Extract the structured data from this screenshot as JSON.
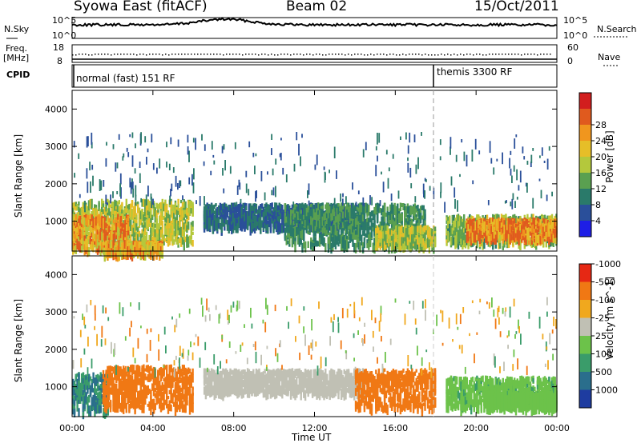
{
  "header": {
    "station": "Syowa East (fitACF)",
    "beam": "Beam 02",
    "date": "15/Oct/2011"
  },
  "panels": {
    "nsky": {
      "label": "N.Sky",
      "tick_top": "10^5",
      "tick_bottom": "10^0"
    },
    "nsearch": {
      "label": "N.Search",
      "tick_top": "10^5",
      "tick_bottom": "10^0"
    },
    "freq": {
      "label_line1": "Freq.",
      "label_line2": "[MHz]",
      "tick_top": "18",
      "tick_bottom": "8"
    },
    "nave": {
      "label": "Nave",
      "tick_top": "60",
      "tick_bottom": "0"
    },
    "cpid": {
      "label": "CPID",
      "mode1": "normal (fast) 151 RF",
      "mode2": "themis 3300 RF"
    }
  },
  "colorbars": {
    "power": {
      "label": "Power [dB]",
      "ticks": [
        "4",
        "8",
        "12",
        "16",
        "20",
        "24",
        "28"
      ],
      "colors": [
        "#1e1ee6",
        "#2a4f9a",
        "#2a7a6a",
        "#5aa050",
        "#b4c83c",
        "#e6be28",
        "#f0961e",
        "#e05a1e",
        "#d21e1e"
      ]
    },
    "velocity": {
      "label": "Velocity [m s^-1]",
      "ticks": [
        "1000",
        "500",
        "100",
        "25",
        "-25",
        "-100",
        "-500",
        "-1000"
      ],
      "colors": [
        "#1e3ca0",
        "#2a6e8c",
        "#3a9c6a",
        "#6cc24a",
        "#c0c0b4",
        "#f0a81e",
        "#f07814",
        "#e62814"
      ]
    }
  },
  "chart_data": [
    {
      "type": "heatmap",
      "name_on_chart": "Power [dB]",
      "ylabel": "Slant Range [km]",
      "xlabel": "Time UT",
      "x_ticks": [
        "00:00",
        "04:00",
        "08:00",
        "12:00",
        "16:00",
        "20:00",
        "00:00"
      ],
      "y_ticks": [
        1000,
        2000,
        3000,
        4000
      ],
      "xlim_hours": [
        0,
        24
      ],
      "ylim_km": [
        200,
        4500
      ],
      "mode_change_hours": 18,
      "regions": [
        {
          "t": [
            0,
            6.0
          ],
          "r": [
            500,
            1600
          ],
          "value": 18
        },
        {
          "t": [
            0,
            2.8
          ],
          "r": [
            300,
            1200
          ],
          "value": 26
        },
        {
          "t": [
            1.5,
            4.5
          ],
          "r": [
            200,
            500
          ],
          "value": 24
        },
        {
          "t": [
            6.5,
            14.5
          ],
          "r": [
            900,
            1500
          ],
          "value": 8
        },
        {
          "t": [
            10.5,
            17.5
          ],
          "r": [
            400,
            1500
          ],
          "value": 12
        },
        {
          "t": [
            15,
            18
          ],
          "r": [
            400,
            900
          ],
          "value": 18
        },
        {
          "t": [
            18.5,
            24
          ],
          "r": [
            500,
            1200
          ],
          "value": 16
        },
        {
          "t": [
            19.5,
            24
          ],
          "r": [
            600,
            1100
          ],
          "value": 28
        }
      ]
    },
    {
      "type": "heatmap",
      "name_on_chart": "Velocity [m s^-1]",
      "ylabel": "Slant Range [km]",
      "xlabel": "Time UT",
      "x_ticks": [
        "00:00",
        "04:00",
        "08:00",
        "12:00",
        "16:00",
        "20:00",
        "00:00"
      ],
      "y_ticks": [
        1000,
        2000,
        3000,
        4000
      ],
      "xlim_hours": [
        0,
        24
      ],
      "ylim_km": [
        200,
        4500
      ],
      "regions": [
        {
          "t": [
            0,
            1.8
          ],
          "r": [
            400,
            1400
          ],
          "value": 500
        },
        {
          "t": [
            1.5,
            6.0
          ],
          "r": [
            500,
            1600
          ],
          "value": -300
        },
        {
          "t": [
            6.5,
            14.5
          ],
          "r": [
            900,
            1500
          ],
          "value": 0
        },
        {
          "t": [
            14,
            18
          ],
          "r": [
            500,
            1500
          ],
          "value": -200
        },
        {
          "t": [
            18.5,
            24
          ],
          "r": [
            500,
            1300
          ],
          "value": 80
        },
        {
          "t": [
            20.5,
            24
          ],
          "r": [
            500,
            900
          ],
          "value": 40
        }
      ]
    }
  ]
}
